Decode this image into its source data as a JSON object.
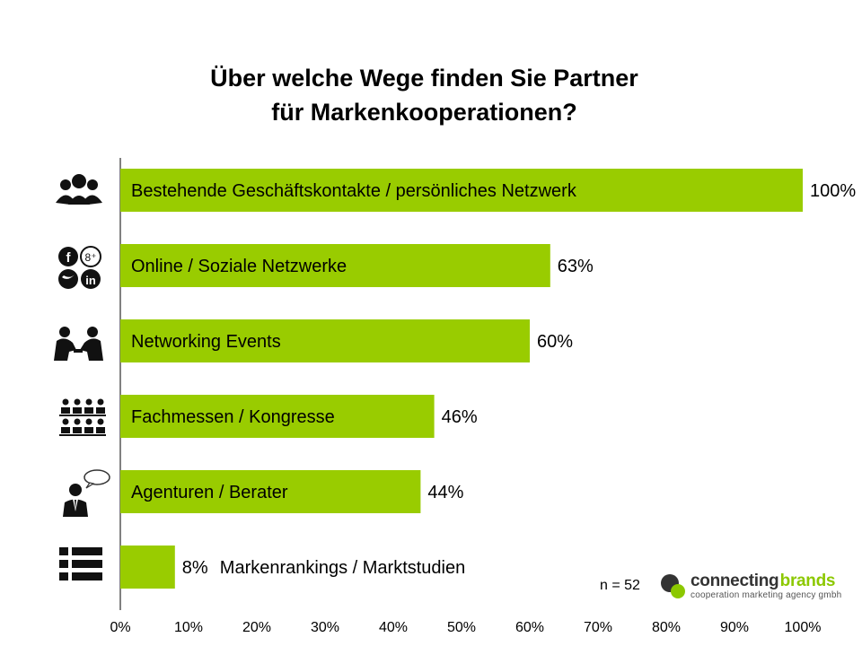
{
  "title_lines": [
    "Über welche Wege finden Sie Partner",
    "für Markenkooperationen?"
  ],
  "chart_data": {
    "type": "bar",
    "orientation": "horizontal",
    "categories": [
      "Bestehende Geschäftskontakte / persönliches Netzwerk",
      "Online / Soziale Netzwerke",
      "Networking Events",
      "Fachmessen / Kongresse",
      "Agenturen / Berater",
      "Markenrankings / Marktstudien"
    ],
    "values": [
      100,
      63,
      60,
      46,
      44,
      8
    ],
    "value_labels": [
      "100%",
      "63%",
      "60%",
      "46%",
      "44%",
      "8%"
    ],
    "xlim": [
      0,
      100
    ],
    "x_ticks": [
      "0%",
      "10%",
      "20%",
      "30%",
      "40%",
      "50%",
      "60%",
      "70%",
      "80%",
      "90%",
      "100%"
    ],
    "bar_color": "#99cc00",
    "grid": false
  },
  "icons": [
    "people-group-icon",
    "social-media-icon",
    "handshake-meeting-icon",
    "audience-seats-icon",
    "consultant-speech-icon",
    "list-icon"
  ],
  "sample_size": "n = 52",
  "logo": {
    "name_part1": "connecting",
    "name_part2": "brands",
    "tagline": "cooperation marketing agency gmbh",
    "accent_color": "#8cc800",
    "dark_color": "#333333"
  }
}
